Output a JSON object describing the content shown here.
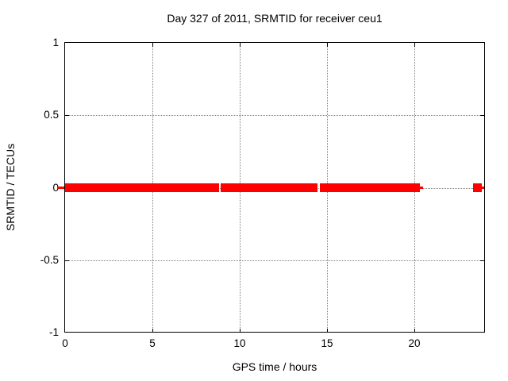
{
  "title": "Day 327 of 2011, SRMTID for receiver ceu1",
  "chart_data": {
    "type": "line",
    "title": "Day 327 of 2011, SRMTID for receiver ceu1",
    "xlabel": "GPS time / hours",
    "ylabel": "SRMTID / TECUs",
    "xlim": [
      0,
      24
    ],
    "ylim": [
      -1,
      1
    ],
    "xticks": [
      0,
      5,
      10,
      15,
      20
    ],
    "xtick_labels": [
      "0",
      "5",
      "10",
      "15",
      "20"
    ],
    "yticks": [
      1,
      0.5,
      0,
      -0.5,
      -1
    ],
    "ytick_labels": [
      "1",
      "0.5",
      "0",
      "-0.5",
      "-1"
    ],
    "grid": true,
    "grid_x": [
      5,
      10,
      15,
      20
    ],
    "grid_y": [
      0.5,
      0,
      -0.5
    ],
    "legend": "none",
    "series": [
      {
        "name": "SRMTID",
        "marker": "filled-square",
        "color": "#ff0000",
        "y_value": 0,
        "segments_hours": [
          [
            0,
            8.82
          ],
          [
            8.91,
            14.45
          ],
          [
            14.59,
            20.32
          ],
          [
            23.36,
            23.86
          ]
        ],
        "thin_line_segments_hours": [
          [
            -0.45,
            -0.05
          ],
          [
            20.32,
            20.5
          ],
          [
            23.86,
            24.0
          ]
        ]
      }
    ],
    "colors": {
      "series": "#ff0000",
      "grid": "#808080",
      "border": "#000000",
      "text": "#000000",
      "background": "#ffffff"
    }
  }
}
